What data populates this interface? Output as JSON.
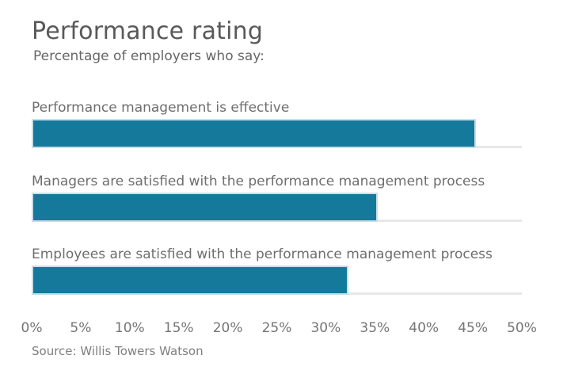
{
  "chart_data": {
    "type": "bar",
    "orientation": "horizontal",
    "title": "Performance rating",
    "subtitle": "Percentage of employers who say:",
    "categories": [
      "Performance management is effective",
      "Managers are satisfied with the performance management process",
      "Employees are satisfied with the performance management process"
    ],
    "values": [
      45,
      35,
      32
    ],
    "unit": "%",
    "xlim": [
      0,
      50
    ],
    "x_ticks": [
      "0%",
      "5%",
      "10%",
      "15%",
      "20%",
      "25%",
      "30%",
      "35%",
      "40%",
      "45%",
      "50%"
    ],
    "grid": false,
    "legend": "none",
    "source": "Source: Willis Towers Watson",
    "colors": {
      "bar_fill": "#15799b",
      "bar_border": "#c9dde8",
      "track": "#e8e8e8",
      "title_text": "#595959",
      "label_text": "#6e6e6e",
      "axis_text": "#757575",
      "source_text": "#7f7f7f"
    }
  }
}
